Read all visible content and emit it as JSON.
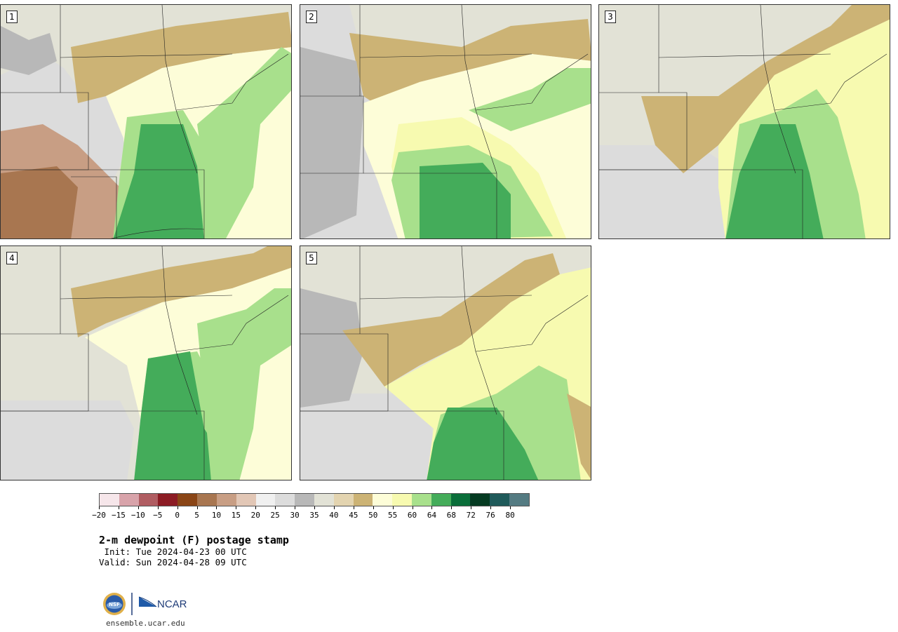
{
  "panels": [
    {
      "number": "1"
    },
    {
      "number": "2"
    },
    {
      "number": "3"
    },
    {
      "number": "4"
    },
    {
      "number": "5"
    }
  ],
  "colorbar": {
    "colors": [
      "#f6e6ea",
      "#d8a3aa",
      "#b05d62",
      "#8c1c24",
      "#8a4516",
      "#a87650",
      "#c89e84",
      "#e2c7b6",
      "#f0f0f0",
      "#dcdcdc",
      "#b8b8b8",
      "#e2e2d6",
      "#e3d4b0",
      "#ccb375",
      "#fdfdd8",
      "#f7fab0",
      "#a8e08c",
      "#44ac5a",
      "#0a6e3a",
      "#053b22",
      "#1f5a5a",
      "#547b82"
    ],
    "tick_labels": [
      "−20",
      "−15",
      "−10",
      "−5",
      "0",
      "5",
      "10",
      "15",
      "20",
      "25",
      "30",
      "35",
      "40",
      "45",
      "50",
      "55",
      "60",
      "64",
      "68",
      "72",
      "76",
      "80"
    ]
  },
  "title": "2-m dewpoint (F) postage stamp",
  "init": " Init: Tue 2024-04-23 00 UTC",
  "valid": "Valid: Sun 2024-04-28 09 UTC",
  "logo": {
    "nsf_text": "NSF",
    "ncar_text": "NCAR"
  },
  "url": "ensemble.ucar.edu"
}
